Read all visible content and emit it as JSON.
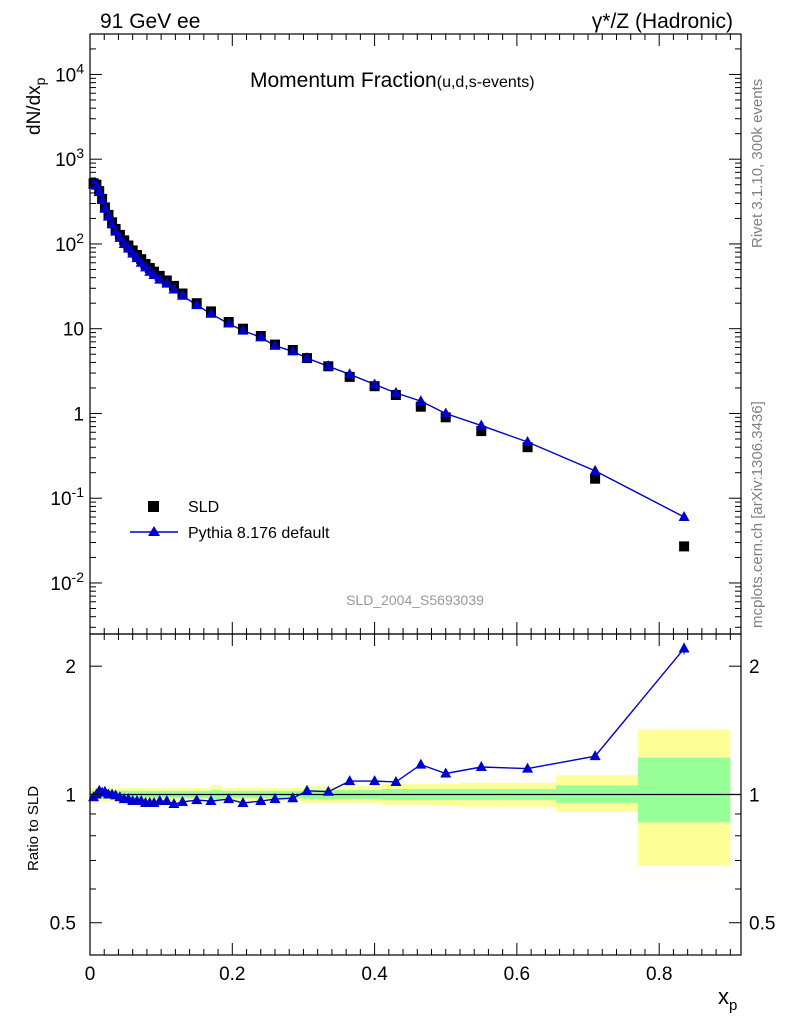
{
  "header": {
    "left": "91 GeV ee",
    "right": "γ*/Z (Hadronic)"
  },
  "side_texts": {
    "rivet": "Rivet 3.1.10,  300k events",
    "mcplots": "mcplots.cern.ch [arXiv:1306.3436]"
  },
  "watermark": "SLD_2004_S5693039",
  "colors": {
    "data": "#000000",
    "mc": "#0000cc",
    "band_inner": "#99ff99",
    "band_outer": "#ffff99"
  },
  "chart_data": [
    {
      "type": "scatter",
      "panel": "main",
      "title_main": "Momentum Fraction",
      "title_sub": "(u,d,s-events)",
      "xlabel_base": "x",
      "xlabel_sub": "p",
      "ylabel_base": "dN/dx",
      "ylabel_sub": "p",
      "yscale": "log",
      "xlim": [
        0,
        0.915
      ],
      "ylim": [
        0.0025,
        30000
      ],
      "xticks": [
        0,
        0.2,
        0.4,
        0.6,
        0.8
      ],
      "yticks": [
        {
          "v": 0.01,
          "base": "10",
          "exp": "-2"
        },
        {
          "v": 0.1,
          "base": "10",
          "exp": "-1"
        },
        {
          "v": 1,
          "base": "1",
          "exp": ""
        },
        {
          "v": 10,
          "base": "10",
          "exp": ""
        },
        {
          "v": 100,
          "base": "10",
          "exp": "2"
        },
        {
          "v": 1000,
          "base": "10",
          "exp": "3"
        },
        {
          "v": 10000,
          "base": "10",
          "exp": "4"
        }
      ],
      "legend_position": "bottom-left",
      "series": [
        {
          "name": "SLD",
          "marker": "square",
          "x": [
            0.005,
            0.009,
            0.013,
            0.017,
            0.021,
            0.026,
            0.031,
            0.036,
            0.042,
            0.048,
            0.054,
            0.06,
            0.066,
            0.072,
            0.078,
            0.084,
            0.09,
            0.098,
            0.108,
            0.118,
            0.13,
            0.15,
            0.17,
            0.195,
            0.215,
            0.24,
            0.26,
            0.285,
            0.305,
            0.335,
            0.365,
            0.4,
            0.43,
            0.465,
            0.5,
            0.55,
            0.615,
            0.71,
            0.835
          ],
          "y": [
            520,
            500,
            420,
            340,
            270,
            220,
            180,
            150,
            128,
            110,
            96,
            84,
            74,
            66,
            58,
            52,
            47,
            42,
            37,
            32,
            26,
            20,
            16,
            12,
            10,
            8.2,
            6.5,
            5.6,
            4.5,
            3.6,
            2.7,
            2.1,
            1.65,
            1.2,
            0.9,
            0.62,
            0.4,
            0.17,
            0.027
          ]
        },
        {
          "name": "Pythia 8.176 default",
          "marker": "triangle",
          "x": [
            0.005,
            0.009,
            0.013,
            0.017,
            0.021,
            0.026,
            0.031,
            0.036,
            0.042,
            0.048,
            0.054,
            0.06,
            0.066,
            0.072,
            0.078,
            0.084,
            0.09,
            0.098,
            0.108,
            0.118,
            0.13,
            0.15,
            0.17,
            0.195,
            0.215,
            0.24,
            0.26,
            0.285,
            0.305,
            0.335,
            0.365,
            0.4,
            0.43,
            0.465,
            0.5,
            0.55,
            0.615,
            0.71,
            0.835
          ],
          "y": [
            500,
            490,
            410,
            330,
            260,
            210,
            170,
            140,
            118,
            100,
            88,
            77,
            68,
            60,
            53,
            47,
            43,
            38,
            34,
            29,
            24.5,
            19,
            15,
            11.5,
            9.5,
            7.9,
            6.3,
            5.4,
            4.5,
            3.6,
            2.9,
            2.2,
            1.75,
            1.4,
            1.0,
            0.72,
            0.46,
            0.21,
            0.06
          ]
        }
      ]
    },
    {
      "type": "line",
      "panel": "ratio",
      "ylabel": "Ratio to SLD",
      "yscale": "log",
      "xlim": [
        0,
        0.915
      ],
      "ylim": [
        0.42,
        2.38
      ],
      "yticks": [
        0.5,
        1,
        2
      ],
      "reference": 1,
      "bands": [
        {
          "x0": 0.0,
          "x1": 0.17,
          "inner": [
            0.98,
            1.02
          ],
          "outer": [
            0.965,
            1.035
          ]
        },
        {
          "x0": 0.17,
          "x1": 0.185,
          "inner": [
            0.975,
            1.025
          ],
          "outer": [
            0.955,
            1.05
          ]
        },
        {
          "x0": 0.185,
          "x1": 0.3,
          "inner": [
            0.98,
            1.02
          ],
          "outer": [
            0.965,
            1.035
          ]
        },
        {
          "x0": 0.3,
          "x1": 0.41,
          "inner": [
            0.975,
            1.025
          ],
          "outer": [
            0.955,
            1.045
          ]
        },
        {
          "x0": 0.41,
          "x1": 0.48,
          "inner": [
            0.97,
            1.03
          ],
          "outer": [
            0.945,
            1.06
          ]
        },
        {
          "x0": 0.48,
          "x1": 0.52,
          "inner": [
            0.97,
            1.03
          ],
          "outer": [
            0.94,
            1.06
          ]
        },
        {
          "x0": 0.52,
          "x1": 0.585,
          "inner": [
            0.97,
            1.03
          ],
          "outer": [
            0.935,
            1.065
          ]
        },
        {
          "x0": 0.585,
          "x1": 0.655,
          "inner": [
            0.97,
            1.03
          ],
          "outer": [
            0.935,
            1.065
          ]
        },
        {
          "x0": 0.655,
          "x1": 0.77,
          "inner": [
            0.955,
            1.05
          ],
          "outer": [
            0.91,
            1.11
          ]
        },
        {
          "x0": 0.77,
          "x1": 0.9,
          "inner": [
            0.86,
            1.22
          ],
          "outer": [
            0.68,
            1.42
          ]
        }
      ],
      "series": [
        {
          "name": "Pythia 8.176 default",
          "marker": "triangle",
          "x": [
            0.005,
            0.009,
            0.013,
            0.017,
            0.021,
            0.026,
            0.031,
            0.036,
            0.042,
            0.048,
            0.054,
            0.06,
            0.066,
            0.072,
            0.078,
            0.084,
            0.09,
            0.098,
            0.108,
            0.118,
            0.13,
            0.15,
            0.17,
            0.195,
            0.215,
            0.24,
            0.26,
            0.285,
            0.305,
            0.335,
            0.365,
            0.4,
            0.43,
            0.465,
            0.5,
            0.55,
            0.615,
            0.71,
            0.835
          ],
          "y": [
            0.985,
            1.0,
            1.02,
            1.01,
            1.015,
            1.0,
            1.0,
            0.995,
            0.985,
            0.975,
            0.975,
            0.965,
            0.965,
            0.965,
            0.955,
            0.955,
            0.955,
            0.965,
            0.965,
            0.95,
            0.96,
            0.97,
            0.965,
            0.975,
            0.955,
            0.965,
            0.975,
            0.98,
            1.02,
            1.015,
            1.075,
            1.075,
            1.07,
            1.175,
            1.12,
            1.16,
            1.15,
            1.23,
            2.2
          ]
        }
      ]
    }
  ]
}
